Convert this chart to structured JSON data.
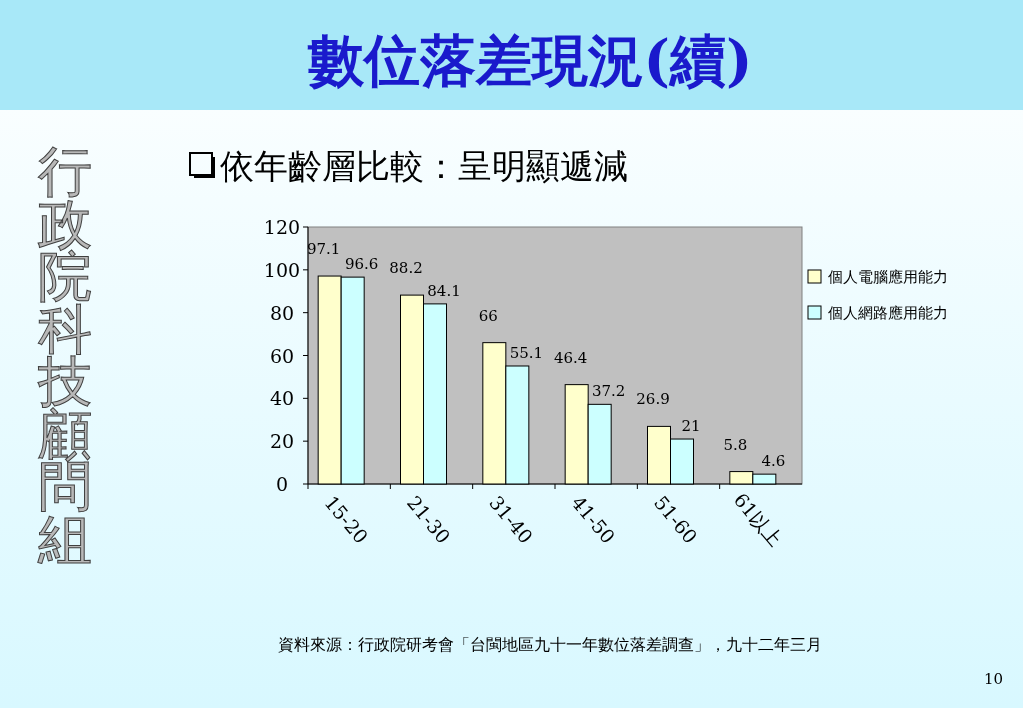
{
  "chart_data": {
    "type": "bar",
    "title": "數位落差現況(續)",
    "subtitle": "依年齡層比較：呈明顯遞減",
    "categories": [
      "15-20",
      "21-30",
      "31-40",
      "41-50",
      "51-60",
      "61以上"
    ],
    "series": [
      {
        "name": "個人電腦應用能力",
        "color": "#ffffcc",
        "values": [
          97.1,
          88.2,
          66,
          46.4,
          26.9,
          5.8
        ]
      },
      {
        "name": "個人網路應用能力",
        "color": "#ccffff",
        "values": [
          96.6,
          84.1,
          55.1,
          37.2,
          21,
          4.6
        ]
      }
    ],
    "ylim": [
      0,
      120
    ],
    "yticks": [
      0,
      20,
      40,
      60,
      80,
      100,
      120
    ],
    "data_labels": true,
    "legend": "right",
    "annotations": [
      "行政院科技顧問組",
      "資料來源：行政院研考會「台閩地區九十一年數位落差調查」，九十二年三月",
      "10"
    ]
  }
}
